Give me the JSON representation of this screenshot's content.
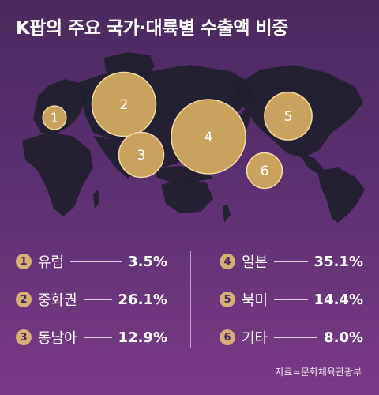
{
  "title": "K팝의 주요 국가·대륙별 수출액 비중",
  "source": "자료=문화체육관광부",
  "chart_data": {
    "type": "bubble-map",
    "title": "K팝의 주요 국가·대륙별 수출액 비중",
    "unit": "%",
    "regions": [
      {
        "id": "1",
        "name": "유럽",
        "value": 3.5,
        "value_label": "3.5%"
      },
      {
        "id": "2",
        "name": "중화권",
        "value": 26.1,
        "value_label": "26.1%"
      },
      {
        "id": "3",
        "name": "동남아",
        "value": 12.9,
        "value_label": "12.9%"
      },
      {
        "id": "4",
        "name": "일본",
        "value": 35.1,
        "value_label": "35.1%"
      },
      {
        "id": "5",
        "name": "북미",
        "value": 14.4,
        "value_label": "14.4%"
      },
      {
        "id": "6",
        "name": "기타",
        "value": 8.0,
        "value_label": "8.0%"
      }
    ]
  },
  "colors": {
    "bubble": "#c9a25e",
    "bubble_outline": "#f3d9a4",
    "land": "#1f1f2c",
    "background_top": "#4a2a5e",
    "background_bottom": "#7a3a86"
  }
}
